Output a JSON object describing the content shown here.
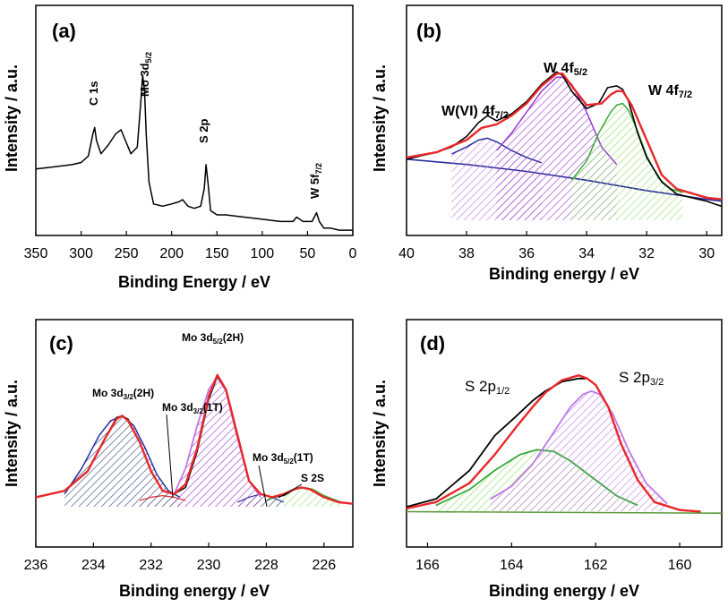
{
  "figure": {
    "colors": {
      "frame": "#000000",
      "fit": "#e8282a",
      "baseline": "#5a9a3a",
      "blue": "#2a2e9a",
      "purple": "#9a3ad0",
      "violet": "#c078e6",
      "green": "#3aa83a",
      "lightgreen": "#88e060",
      "darkblue": "#263a7a",
      "pink": "#f0a0b0"
    }
  },
  "chart_data": [
    {
      "panel": "(a)",
      "type": "line",
      "title": "(a)",
      "xlabel": "Binding Energy / eV",
      "ylabel": "Intensity / a.u.",
      "xlim": [
        350,
        0
      ],
      "xticks": [
        350,
        300,
        250,
        200,
        150,
        100,
        50,
        0
      ],
      "ylim": [
        0,
        1
      ],
      "series": [
        {
          "name": "survey",
          "x": [
            350,
            330,
            310,
            300,
            292,
            287,
            285,
            283,
            278,
            270,
            262,
            256,
            252,
            245,
            238,
            234,
            232,
            230,
            228,
            225,
            220,
            210,
            200,
            192,
            188,
            182,
            175,
            168,
            164,
            162,
            160,
            157,
            150,
            140,
            120,
            100,
            80,
            66,
            62,
            55,
            45,
            40,
            37,
            32,
            25,
            15,
            5,
            0
          ],
          "y": [
            0.3,
            0.31,
            0.32,
            0.33,
            0.36,
            0.46,
            0.49,
            0.43,
            0.37,
            0.41,
            0.46,
            0.48,
            0.44,
            0.37,
            0.4,
            0.61,
            0.73,
            0.66,
            0.45,
            0.24,
            0.14,
            0.13,
            0.14,
            0.15,
            0.16,
            0.13,
            0.12,
            0.13,
            0.21,
            0.32,
            0.24,
            0.11,
            0.09,
            0.09,
            0.08,
            0.07,
            0.06,
            0.06,
            0.08,
            0.06,
            0.06,
            0.1,
            0.06,
            0.03,
            0.03,
            0.02,
            0.02,
            0.02
          ]
        }
      ],
      "annotations": [
        "C 1s",
        "Mo 3d",
        "5/2",
        "S 2p",
        "W 5f",
        "7/2"
      ]
    },
    {
      "panel": "(b)",
      "type": "line",
      "title": "(b)",
      "xlabel": "Binding energy / eV",
      "ylabel": "Intensity / a.u.",
      "xlim": [
        40,
        29.5
      ],
      "xticks": [
        40,
        38,
        36,
        34,
        32,
        30
      ],
      "ylim": [
        0,
        1
      ],
      "series": [
        {
          "name": "raw",
          "x": [
            40,
            39.5,
            39,
            38.5,
            38,
            37.6,
            37.3,
            37,
            36.5,
            36,
            35.5,
            35,
            34.8,
            34.5,
            34,
            33.6,
            33.3,
            33,
            32.8,
            32.6,
            32.3,
            32,
            31.5,
            31,
            30.5,
            30,
            29.5
          ],
          "y": [
            0.37,
            0.39,
            0.41,
            0.44,
            0.5,
            0.58,
            0.62,
            0.59,
            0.63,
            0.7,
            0.8,
            0.87,
            0.85,
            0.76,
            0.66,
            0.69,
            0.78,
            0.79,
            0.77,
            0.7,
            0.52,
            0.38,
            0.24,
            0.17,
            0.15,
            0.13,
            0.1
          ]
        },
        {
          "name": "fit",
          "x": [
            40,
            39,
            38,
            37.5,
            37,
            36.5,
            36,
            35.5,
            35,
            34.8,
            34.5,
            34,
            33.5,
            33.2,
            33,
            32.8,
            32.5,
            32,
            31.5,
            31,
            30,
            29.5
          ],
          "y": [
            0.38,
            0.41,
            0.48,
            0.55,
            0.57,
            0.62,
            0.69,
            0.79,
            0.86,
            0.86,
            0.79,
            0.68,
            0.69,
            0.74,
            0.76,
            0.76,
            0.68,
            0.48,
            0.28,
            0.2,
            0.15,
            0.14
          ]
        },
        {
          "name": "W 4f7/2",
          "x": [
            34.5,
            34,
            33.6,
            33.2,
            33,
            32.8,
            32.6,
            32.3,
            32,
            31.6,
            31.2,
            30.8
          ],
          "y": [
            0.25,
            0.36,
            0.52,
            0.64,
            0.68,
            0.69,
            0.65,
            0.53,
            0.39,
            0.26,
            0.2,
            0.18
          ]
        },
        {
          "name": "W 4f5/2",
          "x": [
            37,
            36.5,
            36,
            35.5,
            35,
            34.8,
            34.5,
            34,
            33.5,
            33
          ],
          "y": [
            0.42,
            0.52,
            0.64,
            0.76,
            0.84,
            0.84,
            0.8,
            0.64,
            0.44,
            0.34
          ]
        },
        {
          "name": "W(VI) 4f7/2",
          "x": [
            38.5,
            38,
            37.6,
            37.3,
            37,
            36.5,
            36,
            35.5
          ],
          "y": [
            0.4,
            0.44,
            0.48,
            0.49,
            0.47,
            0.42,
            0.38,
            0.35
          ]
        },
        {
          "name": "background",
          "x": [
            40,
            38,
            36,
            34,
            32,
            30,
            29.5
          ],
          "y": [
            0.37,
            0.34,
            0.3,
            0.25,
            0.19,
            0.14,
            0.13
          ]
        }
      ],
      "annotations": [
        "W 4f",
        "5/2",
        "W(VI) 4f",
        "7/2",
        "W  4f",
        "7/2"
      ]
    },
    {
      "panel": "(c)",
      "type": "line",
      "title": "(c)",
      "xlabel": "Binding energy / eV",
      "ylabel": "Intensity / a.u.",
      "xlim": [
        236,
        225
      ],
      "xticks": [
        236,
        234,
        232,
        230,
        228,
        226
      ],
      "ylim": [
        0,
        1
      ],
      "series": [
        {
          "name": "raw",
          "x": [
            236,
            235,
            234.2,
            233.6,
            233.2,
            233.0,
            232.8,
            232.4,
            232,
            231.6,
            231.2,
            230.8,
            230.4,
            230.0,
            229.7,
            229.4,
            229.0,
            228.6,
            228.2,
            227.8,
            227.4,
            227.0,
            226.8,
            226.5,
            226.0,
            225.5,
            225
          ],
          "y": [
            0.08,
            0.12,
            0.24,
            0.44,
            0.57,
            0.58,
            0.56,
            0.42,
            0.24,
            0.12,
            0.1,
            0.14,
            0.36,
            0.68,
            0.82,
            0.74,
            0.46,
            0.18,
            0.1,
            0.08,
            0.09,
            0.13,
            0.14,
            0.13,
            0.08,
            0.05,
            0.04
          ]
        },
        {
          "name": "fit",
          "x": [
            236,
            235,
            234.2,
            233.6,
            233.2,
            233.0,
            232.8,
            232.4,
            232,
            231.6,
            231.2,
            230.8,
            230.4,
            230.0,
            229.7,
            229.4,
            229.0,
            228.6,
            228.2,
            227.8,
            227.4,
            227.0,
            226.8,
            226.5,
            226.0,
            225.5,
            225
          ],
          "y": [
            0.08,
            0.12,
            0.24,
            0.44,
            0.56,
            0.58,
            0.55,
            0.42,
            0.24,
            0.12,
            0.1,
            0.16,
            0.38,
            0.7,
            0.83,
            0.74,
            0.46,
            0.18,
            0.1,
            0.08,
            0.1,
            0.13,
            0.14,
            0.13,
            0.08,
            0.05,
            0.04
          ]
        },
        {
          "name": "Mo 3d3/2(2H)",
          "x": [
            235,
            234.4,
            233.8,
            233.4,
            233.0,
            232.6,
            232.2,
            231.8,
            231.4,
            231.0
          ],
          "y": [
            0.1,
            0.26,
            0.46,
            0.55,
            0.58,
            0.52,
            0.38,
            0.22,
            0.12,
            0.08
          ]
        },
        {
          "name": "Mo 3d5/2(2H)",
          "x": [
            231.2,
            230.8,
            230.4,
            230.0,
            229.7,
            229.4,
            229.0,
            228.6,
            228.2
          ],
          "y": [
            0.1,
            0.26,
            0.52,
            0.74,
            0.82,
            0.73,
            0.44,
            0.18,
            0.08
          ]
        },
        {
          "name": "Mo 3d3/2(1T)",
          "x": [
            232.4,
            232.0,
            231.6,
            231.2,
            230.8
          ],
          "y": [
            0.06,
            0.08,
            0.09,
            0.08,
            0.06
          ]
        },
        {
          "name": "Mo 3d5/2(1T)",
          "x": [
            229.0,
            228.6,
            228.2,
            227.8,
            227.4
          ],
          "y": [
            0.05,
            0.08,
            0.1,
            0.08,
            0.05
          ]
        },
        {
          "name": "S 2S",
          "x": [
            228.0,
            227.4,
            227.0,
            226.7,
            226.4,
            226.0,
            225.4
          ],
          "y": [
            0.06,
            0.1,
            0.13,
            0.14,
            0.13,
            0.09,
            0.05
          ]
        }
      ],
      "annotations": [
        "Mo 3d",
        "5/2",
        "(2H)",
        "Mo 3d",
        "3/2",
        "(2H)",
        "Mo 3d",
        "3/2",
        "(1T)",
        "Mo 3d",
        "5/2",
        "(1T)",
        "S 2S"
      ]
    },
    {
      "panel": "(d)",
      "type": "line",
      "title": "(d)",
      "xlabel": "Binding energy / eV",
      "ylabel": "Intensity / a.u.",
      "xlim": [
        166.5,
        159
      ],
      "xticks": [
        166,
        164,
        162,
        160
      ],
      "ylim": [
        0,
        1
      ],
      "series": [
        {
          "name": "raw",
          "x": [
            166.5,
            165.8,
            165.0,
            164.4,
            163.9,
            163.5,
            163.2,
            162.8,
            162.4,
            162.2,
            162.0,
            161.7,
            161.4,
            161.0,
            160.6,
            160.0,
            159.5
          ],
          "y": [
            0.05,
            0.1,
            0.28,
            0.5,
            0.62,
            0.72,
            0.78,
            0.84,
            0.86,
            0.86,
            0.82,
            0.68,
            0.45,
            0.22,
            0.08,
            0.03,
            0.02
          ]
        },
        {
          "name": "fit",
          "x": [
            166.5,
            165.8,
            165.0,
            164.4,
            163.9,
            163.5,
            163.2,
            162.8,
            162.4,
            162.2,
            162.0,
            161.7,
            161.4,
            161.0,
            160.6,
            160.0,
            159.5
          ],
          "y": [
            0.04,
            0.08,
            0.2,
            0.38,
            0.55,
            0.68,
            0.77,
            0.85,
            0.88,
            0.86,
            0.82,
            0.68,
            0.45,
            0.22,
            0.08,
            0.03,
            0.02
          ]
        },
        {
          "name": "S 2p3/2",
          "x": [
            164.5,
            164.0,
            163.5,
            163.0,
            162.6,
            162.3,
            162.1,
            161.9,
            161.6,
            161.2,
            160.8,
            160.3
          ],
          "y": [
            0.1,
            0.18,
            0.32,
            0.52,
            0.68,
            0.76,
            0.78,
            0.76,
            0.64,
            0.4,
            0.2,
            0.07
          ]
        },
        {
          "name": "S 2p1/2",
          "x": [
            165.8,
            165.0,
            164.4,
            163.8,
            163.4,
            163.0,
            162.6,
            162.0,
            161.5,
            161.0
          ],
          "y": [
            0.06,
            0.16,
            0.28,
            0.38,
            0.41,
            0.4,
            0.34,
            0.22,
            0.12,
            0.06
          ]
        },
        {
          "name": "baseline",
          "x": [
            166.5,
            159
          ],
          "y": [
            0.02,
            0.01
          ]
        }
      ],
      "annotations": [
        "S 2p",
        "1/2",
        "S 2p",
        "3/2"
      ]
    }
  ]
}
